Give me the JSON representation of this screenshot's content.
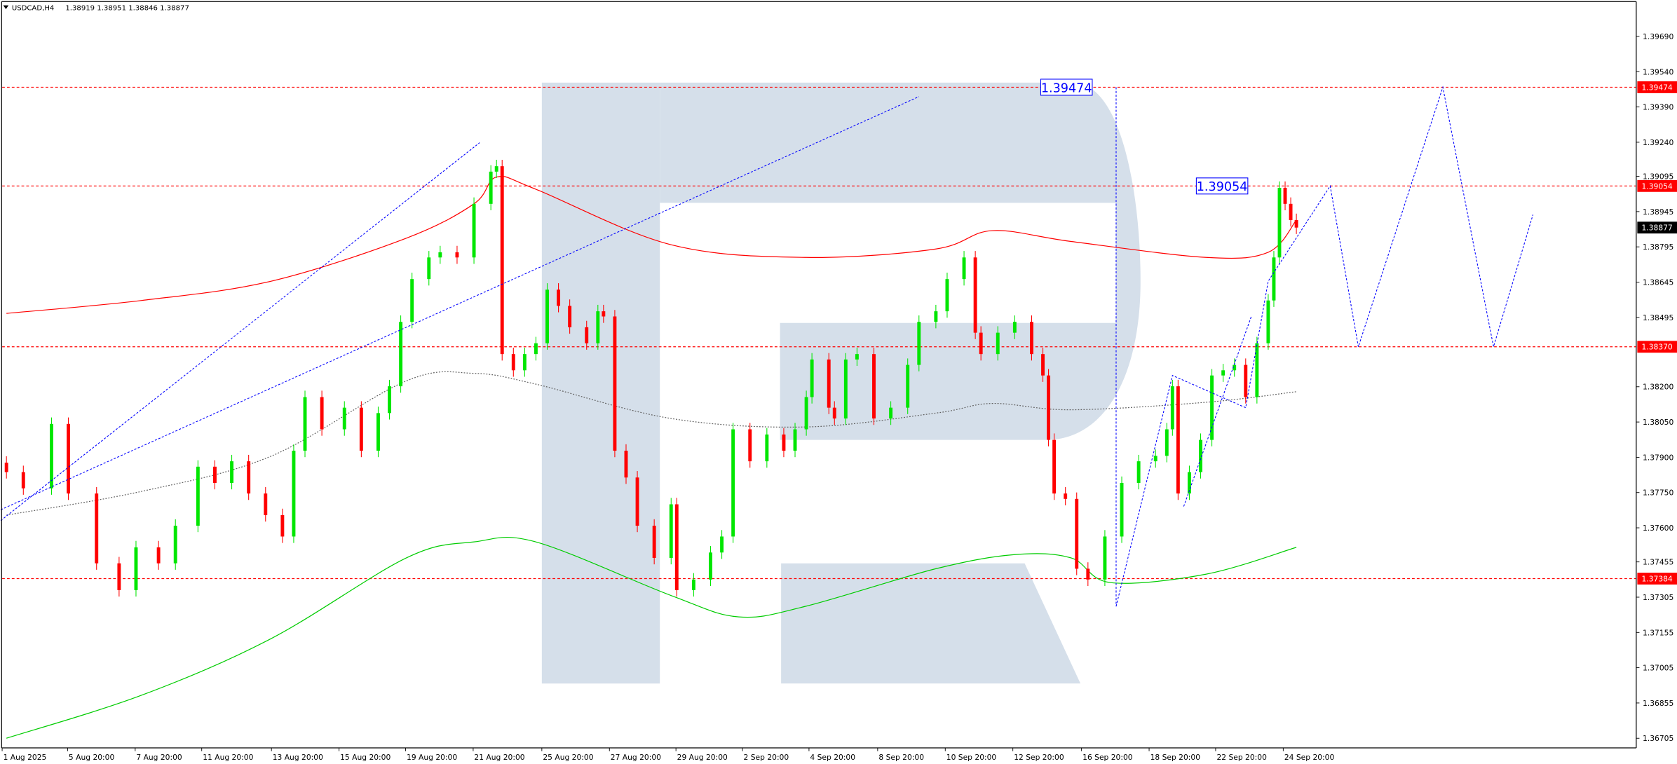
{
  "header": {
    "symbol": "USDCAD,H4",
    "ohlc": "1.38919 1.38951 1.38846 1.38877"
  },
  "colors": {
    "bull": "#00e600",
    "bear": "#ff0000",
    "ma_red": "#ff0000",
    "ma_gray": "#606060",
    "ma_green": "#00cc00",
    "forecast": "#0000ff",
    "level": "#ff0000",
    "watermark": "#d5dfea"
  },
  "chart_data": {
    "type": "candlestick",
    "title": "USDCAD,H4",
    "ylim": [
      1.3665,
      1.39845
    ],
    "grid": false,
    "y_ticks": [
      "1.39690",
      "1.39540",
      "1.39390",
      "1.39240",
      "1.39095",
      "1.38945",
      "1.38795",
      "1.38645",
      "1.38495",
      "1.38200",
      "1.38050",
      "1.37900",
      "1.37750",
      "1.37600",
      "1.37455",
      "1.37305",
      "1.37155",
      "1.37005",
      "1.36855",
      "1.36705"
    ],
    "x_ticks": [
      "1 Aug 2025",
      "5 Aug 20:00",
      "7 Aug 20:00",
      "11 Aug 20:00",
      "13 Aug 20:00",
      "15 Aug 20:00",
      "19 Aug 20:00",
      "21 Aug 20:00",
      "25 Aug 20:00",
      "27 Aug 20:00",
      "29 Aug 20:00",
      "2 Sep 20:00",
      "4 Sep 20:00",
      "8 Sep 20:00",
      "10 Sep 20:00",
      "12 Sep 20:00",
      "16 Sep 20:00",
      "18 Sep 20:00",
      "22 Sep 20:00",
      "24 Sep 20:00"
    ],
    "current_price": "1.38877",
    "levels": [
      {
        "price": 1.39474,
        "label": "1.39474"
      },
      {
        "price": 1.39054,
        "label": "1.39054"
      },
      {
        "price": 1.3837,
        "label": "1.38370"
      },
      {
        "price": 1.37384,
        "label": "1.37384"
      }
    ],
    "price_boxes": [
      {
        "price": 1.39474,
        "label": "1.39474"
      },
      {
        "price": 1.39054,
        "label": "1.39054"
      }
    ],
    "candles": [
      [
        0,
        1.37837
      ],
      [
        3,
        1.37768
      ],
      [
        8,
        1.38042
      ],
      [
        11,
        1.37746
      ],
      [
        16,
        1.37449
      ],
      [
        20,
        1.37335
      ],
      [
        23,
        1.37517
      ],
      [
        27,
        1.37449
      ],
      [
        30,
        1.37609
      ],
      [
        34,
        1.3786
      ],
      [
        37,
        1.37791
      ],
      [
        40,
        1.37883
      ],
      [
        43,
        1.37746
      ],
      [
        46,
        1.37654
      ],
      [
        49,
        1.37563
      ],
      [
        51,
        1.37928
      ],
      [
        53,
        1.38156
      ],
      [
        56,
        1.38019
      ],
      [
        60,
        1.38111
      ],
      [
        63,
        1.37928
      ],
      [
        66,
        1.38088
      ],
      [
        68,
        1.38202
      ],
      [
        70,
        1.38476
      ],
      [
        72,
        1.38658
      ],
      [
        75,
        1.3875
      ],
      [
        77,
        1.38772
      ],
      [
        80,
        1.3875
      ],
      [
        83,
        1.38978
      ],
      [
        86,
        1.39115
      ],
      [
        87,
        1.39138
      ],
      [
        88,
        1.38339
      ],
      [
        90,
        1.3827
      ],
      [
        92,
        1.38339
      ],
      [
        94,
        1.38385
      ],
      [
        96,
        1.38613
      ],
      [
        98,
        1.38544
      ],
      [
        100,
        1.38453
      ],
      [
        103,
        1.38385
      ],
      [
        105,
        1.38521
      ],
      [
        106,
        1.38499
      ],
      [
        108,
        1.37928
      ],
      [
        110,
        1.37814
      ],
      [
        112,
        1.37609
      ],
      [
        115,
        1.37472
      ],
      [
        118,
        1.377
      ],
      [
        119,
        1.37335
      ],
      [
        122,
        1.3738
      ],
      [
        125,
        1.37495
      ],
      [
        127,
        1.37563
      ],
      [
        129,
        1.38019
      ],
      [
        132,
        1.37883
      ],
      [
        135,
        1.37997
      ],
      [
        138,
        1.37928
      ],
      [
        140,
        1.38019
      ],
      [
        142,
        1.38156
      ],
      [
        143,
        1.38316
      ],
      [
        146,
        1.38111
      ],
      [
        147,
        1.38065
      ],
      [
        149,
        1.38316
      ],
      [
        151,
        1.38339
      ],
      [
        154,
        1.38065
      ],
      [
        157,
        1.38111
      ],
      [
        160,
        1.38293
      ],
      [
        162,
        1.38476
      ],
      [
        165,
        1.38521
      ],
      [
        167,
        1.38658
      ],
      [
        170,
        1.3875
      ],
      [
        172,
        1.3843
      ],
      [
        173,
        1.38339
      ],
      [
        176,
        1.3843
      ],
      [
        179,
        1.38476
      ],
      [
        182,
        1.38339
      ],
      [
        184,
        1.38248
      ],
      [
        185,
        1.37974
      ],
      [
        186,
        1.37746
      ],
      [
        188,
        1.37723
      ],
      [
        190,
        1.37426
      ],
      [
        192,
        1.3738
      ],
      [
        195,
        1.37563
      ],
      [
        198,
        1.37791
      ],
      [
        201,
        1.37883
      ],
      [
        204,
        1.37906
      ],
      [
        206,
        1.38019
      ],
      [
        207,
        1.38202
      ],
      [
        208,
        1.37746
      ],
      [
        210,
        1.37837
      ],
      [
        212,
        1.37974
      ],
      [
        214,
        1.38248
      ],
      [
        216,
        1.3827
      ],
      [
        218,
        1.38293
      ],
      [
        220,
        1.38156
      ],
      [
        222,
        1.38385
      ],
      [
        224,
        1.38567
      ],
      [
        225,
        1.3875
      ],
      [
        226,
        1.39046
      ],
      [
        227,
        1.38978
      ],
      [
        228,
        1.38909
      ],
      [
        229,
        1.38877
      ]
    ],
    "moving_averages": [
      {
        "color": "#ff0000",
        "style": "solid",
        "bars": [
          0,
          24,
          47,
          71,
          83,
          87,
          94,
          118,
          142,
          165,
          175,
          189,
          213,
          224,
          229
        ],
        "values": [
          1.38512,
          1.38567,
          1.38649,
          1.38832,
          1.38978,
          1.39092,
          1.3904,
          1.38804,
          1.3875,
          1.38786,
          1.38864,
          1.38818,
          1.3875,
          1.38772,
          1.38909
        ]
      },
      {
        "color": "#606060",
        "style": "dotted",
        "bars": [
          0,
          24,
          47,
          71,
          83,
          94,
          118,
          142,
          165,
          175,
          189,
          213,
          229
        ],
        "values": [
          1.37654,
          1.37755,
          1.37905,
          1.38225,
          1.38257,
          1.38211,
          1.38065,
          1.38029,
          1.38088,
          1.38129,
          1.38102,
          1.38134,
          1.38179
        ]
      },
      {
        "color": "#00cc00",
        "style": "solid",
        "bars": [
          0,
          24,
          47,
          71,
          83,
          94,
          118,
          130,
          142,
          165,
          179,
          189,
          196,
          213,
          229
        ],
        "values": [
          1.36705,
          1.36888,
          1.37129,
          1.37472,
          1.3754,
          1.3754,
          1.37312,
          1.37221,
          1.37267,
          1.37426,
          1.37486,
          1.37472,
          1.37367,
          1.37403,
          1.37517
        ]
      }
    ],
    "forecast_lines": [
      {
        "points": [
          [
            -1,
            1.37631
          ],
          [
            84,
            1.39238
          ]
        ]
      },
      {
        "points": [
          [
            -1,
            1.37677
          ],
          [
            162,
            1.39434
          ]
        ]
      },
      {
        "points": [
          [
            197,
            1.39474
          ],
          [
            197,
            1.37266
          ]
        ]
      },
      {
        "points": [
          [
            197,
            1.37266
          ],
          [
            207,
            1.38248
          ],
          [
            220,
            1.38111
          ],
          [
            224,
            1.38649
          ],
          [
            235,
            1.39054
          ],
          [
            240,
            1.3837
          ],
          [
            255,
            1.39474
          ],
          [
            264,
            1.3837
          ],
          [
            271,
            1.38932
          ]
        ]
      },
      {
        "points": [
          [
            209,
            1.37691
          ],
          [
            221,
            1.38499
          ]
        ]
      }
    ]
  }
}
